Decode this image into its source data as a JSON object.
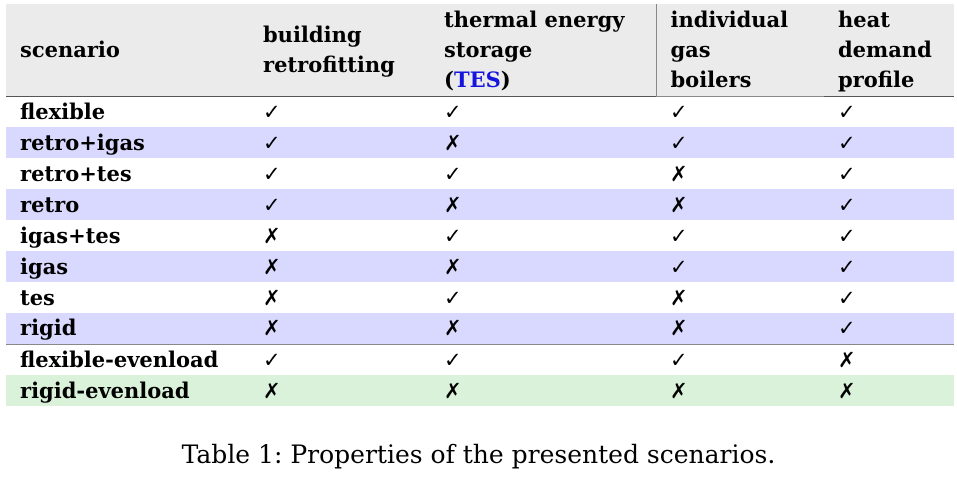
{
  "table": {
    "header": {
      "scenario": "scenario",
      "retro_l1": "building",
      "retro_l2": "retrofitting",
      "tes_l1": "thermal energy",
      "tes_l2": "storage",
      "tes_open": "(",
      "tes_abbr": "TES",
      "tes_close": ")",
      "igas_l1": "individual",
      "igas_l2": "gas",
      "igas_l3": "boilers",
      "hd_l1": "heat",
      "hd_l2": "demand",
      "hd_l3": "profile"
    },
    "rows": [
      {
        "name": "flexible",
        "retro": "✓",
        "tes": "✓",
        "igas": "✓",
        "heat": "✓"
      },
      {
        "name": "retro+igas",
        "retro": "✓",
        "tes": "✗",
        "igas": "✓",
        "heat": "✓"
      },
      {
        "name": "retro+tes",
        "retro": "✓",
        "tes": "✓",
        "igas": "✗",
        "heat": "✓"
      },
      {
        "name": "retro",
        "retro": "✓",
        "tes": "✗",
        "igas": "✗",
        "heat": "✓"
      },
      {
        "name": "igas+tes",
        "retro": "✗",
        "tes": "✓",
        "igas": "✓",
        "heat": "✓"
      },
      {
        "name": "igas",
        "retro": "✗",
        "tes": "✗",
        "igas": "✓",
        "heat": "✓"
      },
      {
        "name": "tes",
        "retro": "✗",
        "tes": "✓",
        "igas": "✗",
        "heat": "✓"
      },
      {
        "name": "rigid",
        "retro": "✗",
        "tes": "✗",
        "igas": "✗",
        "heat": "✓"
      },
      {
        "name": "flexible-evenload",
        "retro": "✓",
        "tes": "✓",
        "igas": "✓",
        "heat": "✗"
      },
      {
        "name": "rigid-evenload",
        "retro": "✗",
        "tes": "✗",
        "igas": "✗",
        "heat": "✗"
      }
    ]
  },
  "caption": "Table 1: Properties of the presented scenarios.",
  "colors": {
    "alt_row": "#d9d9ff",
    "green_row": "#d9f2d9",
    "header_bg": "#ebebeb",
    "link": "#1515dd"
  }
}
